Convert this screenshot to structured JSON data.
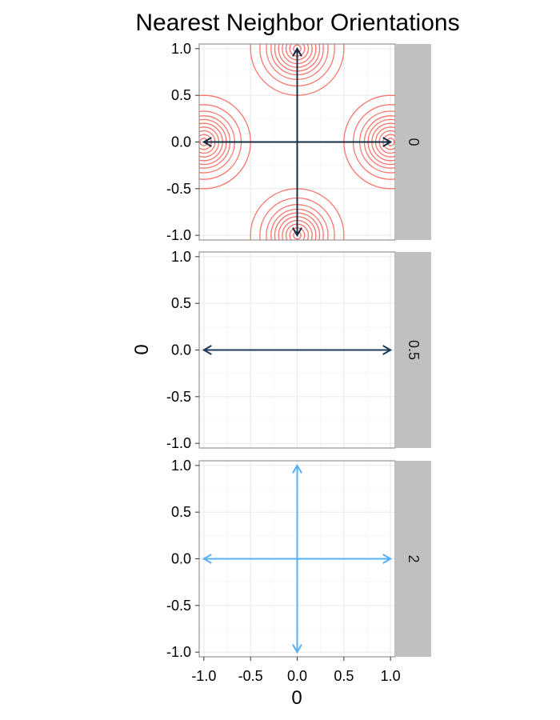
{
  "chart_data": {
    "type": "line",
    "title": "Nearest Neighbor Orientations",
    "xlabel": "0",
    "ylabel": "0",
    "xlim": [
      -1.05,
      1.05
    ],
    "ylim": [
      -1.05,
      1.05
    ],
    "x_ticks": [
      -1.0,
      -0.5,
      0.0,
      0.5,
      1.0
    ],
    "x_tick_labels": [
      "-1.0",
      "-0.5",
      "0.0",
      "0.5",
      "1.0"
    ],
    "y_ticks": [
      1.0,
      0.5,
      0.0,
      -0.5,
      -1.0
    ],
    "y_tick_labels": [
      "1.0",
      "0.5",
      "0.0",
      "-0.5",
      "-1.0"
    ],
    "grid": true,
    "facets": [
      {
        "strip_label": "0",
        "arrow_color": "#132b43",
        "arrows": [
          {
            "from": [
              0,
              0
            ],
            "to": [
              1,
              0
            ]
          },
          {
            "from": [
              0,
              0
            ],
            "to": [
              -1,
              0
            ]
          },
          {
            "from": [
              0,
              0
            ],
            "to": [
              0,
              1
            ]
          },
          {
            "from": [
              0,
              0
            ],
            "to": [
              0,
              -1
            ]
          }
        ],
        "contours": {
          "color": "#f8766d",
          "centers": [
            [
              1,
              0
            ],
            [
              -1,
              0
            ],
            [
              0,
              1
            ],
            [
              0,
              -1
            ]
          ],
          "radii": [
            0.04,
            0.08,
            0.12,
            0.16,
            0.2,
            0.24,
            0.28,
            0.33,
            0.4,
            0.5
          ]
        }
      },
      {
        "strip_label": "0.5",
        "arrow_color": "#1c3a5a",
        "arrows": [
          {
            "from": [
              0,
              0
            ],
            "to": [
              1,
              0
            ]
          },
          {
            "from": [
              0,
              0
            ],
            "to": [
              -1,
              0
            ]
          }
        ]
      },
      {
        "strip_label": "2",
        "arrow_color": "#56b1f7",
        "arrows": [
          {
            "from": [
              0,
              0
            ],
            "to": [
              1,
              0
            ]
          },
          {
            "from": [
              0,
              0
            ],
            "to": [
              -1,
              0
            ]
          },
          {
            "from": [
              0,
              0
            ],
            "to": [
              0,
              1
            ]
          },
          {
            "from": [
              0,
              0
            ],
            "to": [
              0,
              -1
            ]
          }
        ]
      }
    ],
    "colors": {
      "panel_border": "#7f7f7f",
      "grid_major": "#ebebeb",
      "grid_minor": "#f5f5f5",
      "strip_fill": "#c0c0c0"
    }
  }
}
